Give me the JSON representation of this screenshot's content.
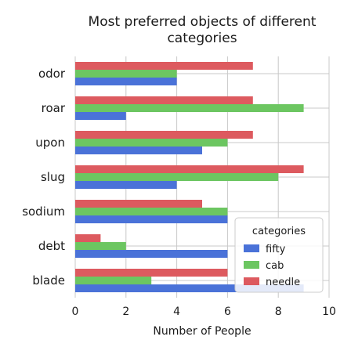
{
  "chart_data": {
    "type": "bar",
    "orientation": "horizontal",
    "title": "Most preferred objects of different categories",
    "title_lines": [
      "Most preferred objects of different",
      "categories"
    ],
    "xlabel": "Number of People",
    "ylabel": "",
    "categories": [
      "odor",
      "roar",
      "upon",
      "slug",
      "sodium",
      "debt",
      "blade"
    ],
    "series": [
      {
        "name": "fifty",
        "color": "#4a72d8",
        "values": [
          4,
          2,
          5,
          4,
          6,
          6,
          9
        ]
      },
      {
        "name": "cab",
        "color": "#6cc661",
        "values": [
          4,
          9,
          6,
          8,
          6,
          2,
          3
        ]
      },
      {
        "name": "needle",
        "color": "#dd5a5f",
        "values": [
          7,
          7,
          7,
          9,
          5,
          1,
          6
        ]
      }
    ],
    "xlim": [
      0,
      10
    ],
    "xticks": [
      "0",
      "2",
      "4",
      "6",
      "8",
      "10"
    ],
    "grid": true,
    "legend": {
      "title": "categories",
      "position": "bottom-right"
    }
  }
}
